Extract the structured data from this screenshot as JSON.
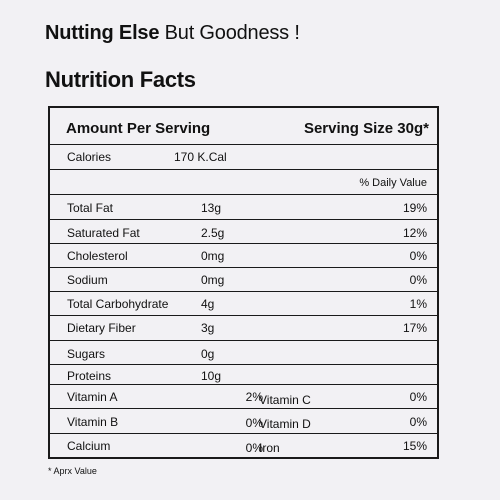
{
  "tagline": {
    "bold": "Nutting Else",
    "rest": " But Goodness !"
  },
  "heading": "Nutrition Facts",
  "table": {
    "amount_per_serving": "Amount Per Serving",
    "serving_size": "Serving Size 30g*",
    "calories_label": "Calories",
    "calories_value": "170 K.Cal",
    "daily_value_header": "% Daily Value",
    "nutrients": [
      {
        "name": "Total Fat",
        "amount": "13g",
        "dv": "19%"
      },
      {
        "name": "Saturated Fat",
        "amount": "2.5g",
        "dv": "12%"
      },
      {
        "name": "Cholesterol",
        "amount": "0mg",
        "dv": "0%"
      },
      {
        "name": "Sodium",
        "amount": "0mg",
        "dv": "0%"
      },
      {
        "name": "Total Carbohydrate",
        "amount": "4g",
        "dv": "1%"
      },
      {
        "name": "Dietary Fiber",
        "amount": "3g",
        "dv": "17%"
      },
      {
        "name": "Sugars",
        "amount": "0g",
        "dv": ""
      },
      {
        "name": "Proteins",
        "amount": "10g",
        "dv": ""
      }
    ],
    "vitamins": [
      {
        "left_name": "Vitamin A",
        "left_value": "2%",
        "right_name": "Vitamin C",
        "right_value": "0%"
      },
      {
        "left_name": "Vitamin B",
        "left_value": "0%",
        "right_name": "Vitamin D",
        "right_value": "0%"
      },
      {
        "left_name": "Calcium",
        "left_value": "0%",
        "right_name": "Iron",
        "right_value": "15%"
      }
    ]
  },
  "footnote": "* Aprx Value"
}
